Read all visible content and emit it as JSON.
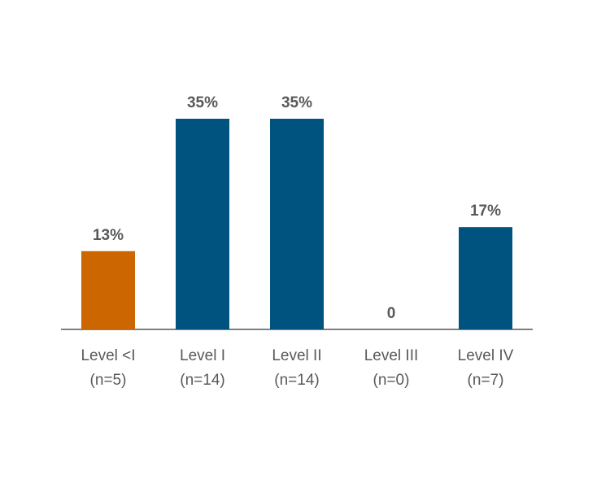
{
  "chart_data": {
    "type": "bar",
    "categories": [
      [
        "Level <I",
        "(n=5)"
      ],
      [
        "Level I",
        "(n=14)"
      ],
      [
        "Level II",
        "(n=14)"
      ],
      [
        "Level III",
        "(n=0)"
      ],
      [
        "Level IV",
        "(n=7)"
      ]
    ],
    "values": [
      13,
      35,
      35,
      0,
      17
    ],
    "value_labels": [
      "13%",
      "35%",
      "35%",
      "0",
      "17%"
    ],
    "colors": [
      "#cc6600",
      "#00527f",
      "#00527f",
      "#00527f",
      "#00527f"
    ]
  }
}
